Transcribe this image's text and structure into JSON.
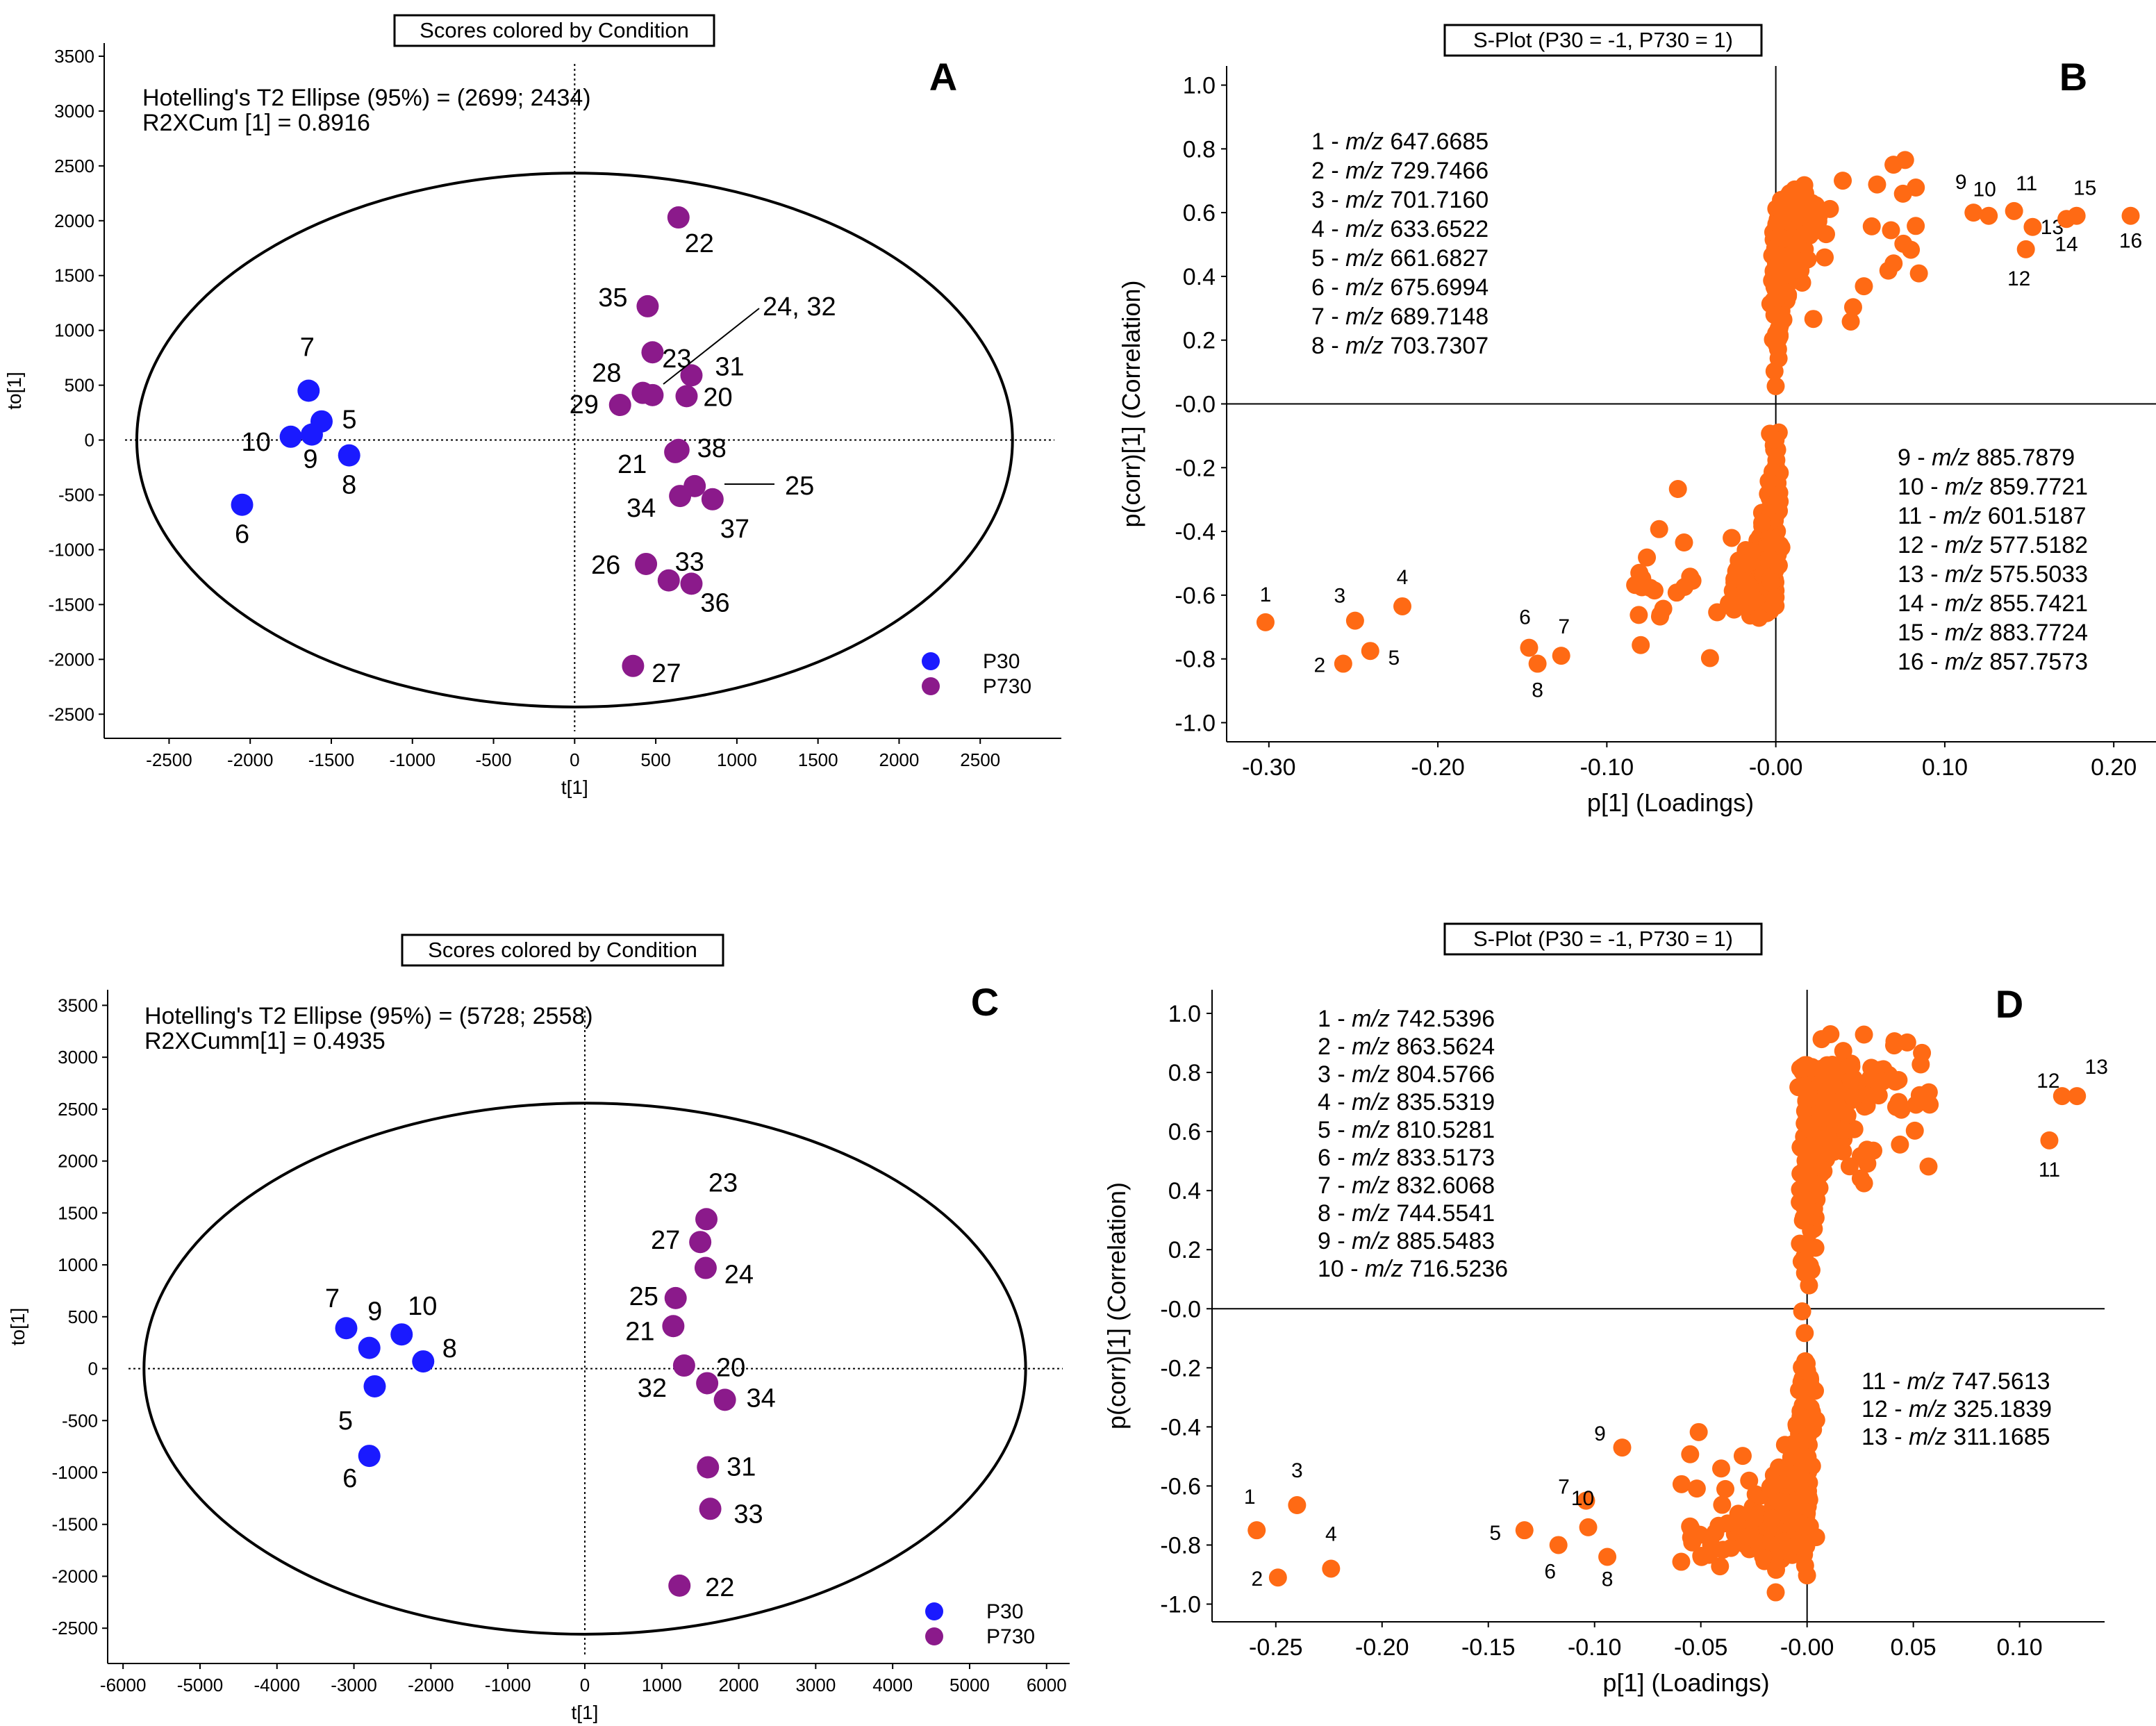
{
  "colors": {
    "p30": "#1a1aff",
    "p730": "#8b1a8b",
    "splot": "#ff6a14",
    "axis": "#000000"
  },
  "chart_data": [
    {
      "panel": "A",
      "type": "scatter",
      "title": "Scores colored by Condition",
      "xlabel": "t[1]",
      "ylabel": "to[1]",
      "xlim": [
        -2900,
        3000
      ],
      "ylim": [
        -2720,
        3620
      ],
      "xticks": [
        -2500,
        -2000,
        -1500,
        -1000,
        -500,
        0,
        500,
        1000,
        1500,
        2000,
        2500
      ],
      "yticks": [
        3500,
        3000,
        2500,
        2000,
        1500,
        1000,
        500,
        0,
        -500,
        -1000,
        -1500,
        -2000,
        -2500
      ],
      "annotation": [
        "Hotelling's T2 Ellipse (95%) = (2699; 2434)",
        "R2XCum [1] = 0.8916"
      ],
      "ellipse": {
        "a": 2699,
        "b": 2434
      },
      "legend": {
        "position": "bottom-right",
        "entries": [
          "P30",
          "P730"
        ]
      },
      "series": [
        {
          "name": "P30",
          "points": [
            {
              "label": "7",
              "x": -1640,
              "y": 450
            },
            {
              "label": "5",
              "x": -1560,
              "y": 170
            },
            {
              "label": "10",
              "x": -1750,
              "y": 30
            },
            {
              "label": "9",
              "x": -1620,
              "y": 50
            },
            {
              "label": "8",
              "x": -1390,
              "y": -140
            },
            {
              "label": "6",
              "x": -2050,
              "y": -590
            }
          ]
        },
        {
          "name": "P730",
          "points": [
            {
              "label": "22",
              "x": 640,
              "y": 2030
            },
            {
              "label": "35",
              "x": 450,
              "y": 1220
            },
            {
              "label": "23",
              "x": 480,
              "y": 800
            },
            {
              "label": "31",
              "x": 720,
              "y": 590
            },
            {
              "label": "28",
              "x": 420,
              "y": 430
            },
            {
              "label": "",
              "x": 480,
              "y": 410
            },
            {
              "label": "29",
              "x": 280,
              "y": 320
            },
            {
              "label": "20",
              "x": 690,
              "y": 400
            },
            {
              "label": "38",
              "x": 640,
              "y": -90
            },
            {
              "label": "21",
              "x": 620,
              "y": -110
            },
            {
              "label": "",
              "x": 740,
              "y": -420
            },
            {
              "label": "34",
              "x": 650,
              "y": -510
            },
            {
              "label": "37",
              "x": 850,
              "y": -540
            },
            {
              "label": "26",
              "x": 440,
              "y": -1130
            },
            {
              "label": "33",
              "x": 580,
              "y": -1280
            },
            {
              "label": "36",
              "x": 720,
              "y": -1310
            },
            {
              "label": "27",
              "x": 360,
              "y": -2060
            }
          ]
        }
      ],
      "callouts": [
        {
          "text": "24, 32"
        },
        {
          "text": "25"
        }
      ]
    },
    {
      "panel": "B",
      "type": "scatter",
      "title": "S-Plot (P30 = -1, P730 = 1)",
      "xlabel": "p[1] (Loadings)",
      "ylabel": "p(corr)[1] (Correlation)",
      "xlim": [
        -0.325,
        0.225
      ],
      "ylim": [
        -1.06,
        1.06
      ],
      "xticks": [
        "-0.30",
        "-0.20",
        "-0.10",
        "-0.00",
        "0.10",
        "0.20"
      ],
      "yticks": [
        "1.0",
        "0.8",
        "0.6",
        "0.4",
        "0.2",
        "-0.0",
        "-0.2",
        "-0.4",
        "-0.6",
        "-0.8",
        "-1.0"
      ],
      "mz_list_left": [
        "1 - m/z 647.6685",
        "2 - m/z 729.7466",
        "3 - m/z 701.7160",
        "4 - m/z 633.6522",
        "5 - m/z 661.6827",
        "6 - m/z 675.6994",
        "7 - m/z 689.7148",
        "8 - m/z 703.7307"
      ],
      "mz_list_right": [
        "9 - m/z 885.7879",
        "10 - m/z 859.7721",
        "11 - m/z 601.5187",
        "12 - m/z 577.5182",
        "13 - m/z 575.5033",
        "14 - m/z 855.7421",
        "15 - m/z 883.7724",
        "16 - m/z 857.7573"
      ],
      "labeled_points": [
        {
          "label": "1",
          "x": -0.302,
          "y": -0.685
        },
        {
          "label": "2",
          "x": -0.256,
          "y": -0.815
        },
        {
          "label": "3",
          "x": -0.249,
          "y": -0.68
        },
        {
          "label": "4",
          "x": -0.221,
          "y": -0.635
        },
        {
          "label": "5",
          "x": -0.24,
          "y": -0.775
        },
        {
          "label": "6",
          "x": -0.146,
          "y": -0.765
        },
        {
          "label": "7",
          "x": -0.127,
          "y": -0.79
        },
        {
          "label": "8",
          "x": -0.141,
          "y": -0.815
        },
        {
          "label": "9",
          "x": 0.117,
          "y": 0.6
        },
        {
          "label": "10",
          "x": 0.126,
          "y": 0.59
        },
        {
          "label": "11",
          "x": 0.141,
          "y": 0.605
        },
        {
          "label": "12",
          "x": 0.148,
          "y": 0.485
        },
        {
          "label": "13",
          "x": 0.152,
          "y": 0.555
        },
        {
          "label": "14",
          "x": 0.172,
          "y": 0.58
        },
        {
          "label": "15",
          "x": 0.178,
          "y": 0.59
        },
        {
          "label": "16",
          "x": 0.21,
          "y": 0.59
        }
      ],
      "cloud_seed": 7
    },
    {
      "panel": "C",
      "type": "scatter",
      "title": "Scores colored by Condition",
      "xlabel": "t[1]",
      "ylabel": "to[1]",
      "xlim": [
        -6200,
        6300
      ],
      "ylim": [
        -2840,
        3650
      ],
      "xticks": [
        -6000,
        -5000,
        -4000,
        -3000,
        -2000,
        -1000,
        0,
        1000,
        2000,
        3000,
        4000,
        5000,
        6000
      ],
      "yticks": [
        3500,
        3000,
        2500,
        2000,
        1500,
        1000,
        500,
        0,
        -500,
        -1000,
        -1500,
        -2000,
        -2500
      ],
      "annotation": [
        "Hotelling's T2 Ellipse (95%) = (5728; 2558)",
        "R2XCumm[1] = 0.4935"
      ],
      "ellipse": {
        "a": 5728,
        "b": 2558
      },
      "legend": {
        "position": "bottom-right",
        "entries": [
          "P30",
          "P730"
        ]
      },
      "series": [
        {
          "name": "P30",
          "points": [
            {
              "label": "7",
              "x": -3100,
              "y": 390
            },
            {
              "label": "9",
              "x": -2800,
              "y": 200
            },
            {
              "label": "10",
              "x": -2380,
              "y": 330
            },
            {
              "label": "8",
              "x": -2100,
              "y": 70
            },
            {
              "label": "5",
              "x": -2730,
              "y": -170
            },
            {
              "label": "6",
              "x": -2800,
              "y": -840
            }
          ]
        },
        {
          "name": "P730",
          "points": [
            {
              "label": "23",
              "x": 1580,
              "y": 1440
            },
            {
              "label": "27",
              "x": 1500,
              "y": 1220
            },
            {
              "label": "24",
              "x": 1570,
              "y": 970
            },
            {
              "label": "25",
              "x": 1180,
              "y": 680
            },
            {
              "label": "21",
              "x": 1150,
              "y": 410
            },
            {
              "label": "32",
              "x": 1290,
              "y": 30
            },
            {
              "label": "20",
              "x": 1590,
              "y": -140
            },
            {
              "label": "34",
              "x": 1820,
              "y": -300
            },
            {
              "label": "31",
              "x": 1600,
              "y": -950
            },
            {
              "label": "33",
              "x": 1630,
              "y": -1350
            },
            {
              "label": "22",
              "x": 1230,
              "y": -2090
            }
          ]
        }
      ]
    },
    {
      "panel": "D",
      "type": "scatter",
      "title": "S-Plot (P30 = -1, P730 = 1)",
      "xlabel": "p[1] (Loadings)",
      "ylabel": "p(corr)[1] (Correlation)",
      "xlim": [
        -0.28,
        0.14
      ],
      "ylim": [
        -1.06,
        1.08
      ],
      "xticks": [
        "-0.25",
        "-0.20",
        "-0.15",
        "-0.10",
        "-0.05",
        "-0.00",
        "0.05",
        "0.10"
      ],
      "yticks": [
        "1.0",
        "0.8",
        "0.6",
        "0.4",
        "0.2",
        "-0.0",
        "-0.2",
        "-0.4",
        "-0.6",
        "-0.8",
        "-1.0"
      ],
      "mz_list_left": [
        "1 - m/z 742.5396",
        "2 - m/z 863.5624",
        "3 - m/z 804.5766",
        "4 - m/z 835.5319",
        "5 - m/z 810.5281",
        "6 - m/z 833.5173",
        "7 - m/z 832.6068",
        "8 - m/z 744.5541",
        "9 - m/z 885.5483",
        "10 - m/z 716.5236"
      ],
      "mz_list_right": [
        "11 - m/z 747.5613",
        "12 - m/z 325.1839",
        "13 - m/z 311.1685"
      ],
      "labeled_points": [
        {
          "label": "1",
          "x": -0.259,
          "y": -0.75
        },
        {
          "label": "2",
          "x": -0.249,
          "y": -0.91
        },
        {
          "label": "3",
          "x": -0.24,
          "y": -0.665
        },
        {
          "label": "4",
          "x": -0.224,
          "y": -0.88
        },
        {
          "label": "5",
          "x": -0.133,
          "y": -0.75
        },
        {
          "label": "6",
          "x": -0.117,
          "y": -0.8
        },
        {
          "label": "7",
          "x": -0.104,
          "y": -0.65
        },
        {
          "label": "8",
          "x": -0.094,
          "y": -0.84
        },
        {
          "label": "9",
          "x": -0.087,
          "y": -0.47
        },
        {
          "label": "10",
          "x": -0.103,
          "y": -0.74
        },
        {
          "label": "11",
          "x": 0.114,
          "y": 0.57
        },
        {
          "label": "12",
          "x": 0.12,
          "y": 0.72
        },
        {
          "label": "13",
          "x": 0.127,
          "y": 0.72
        }
      ],
      "cloud_seed": 11
    }
  ]
}
